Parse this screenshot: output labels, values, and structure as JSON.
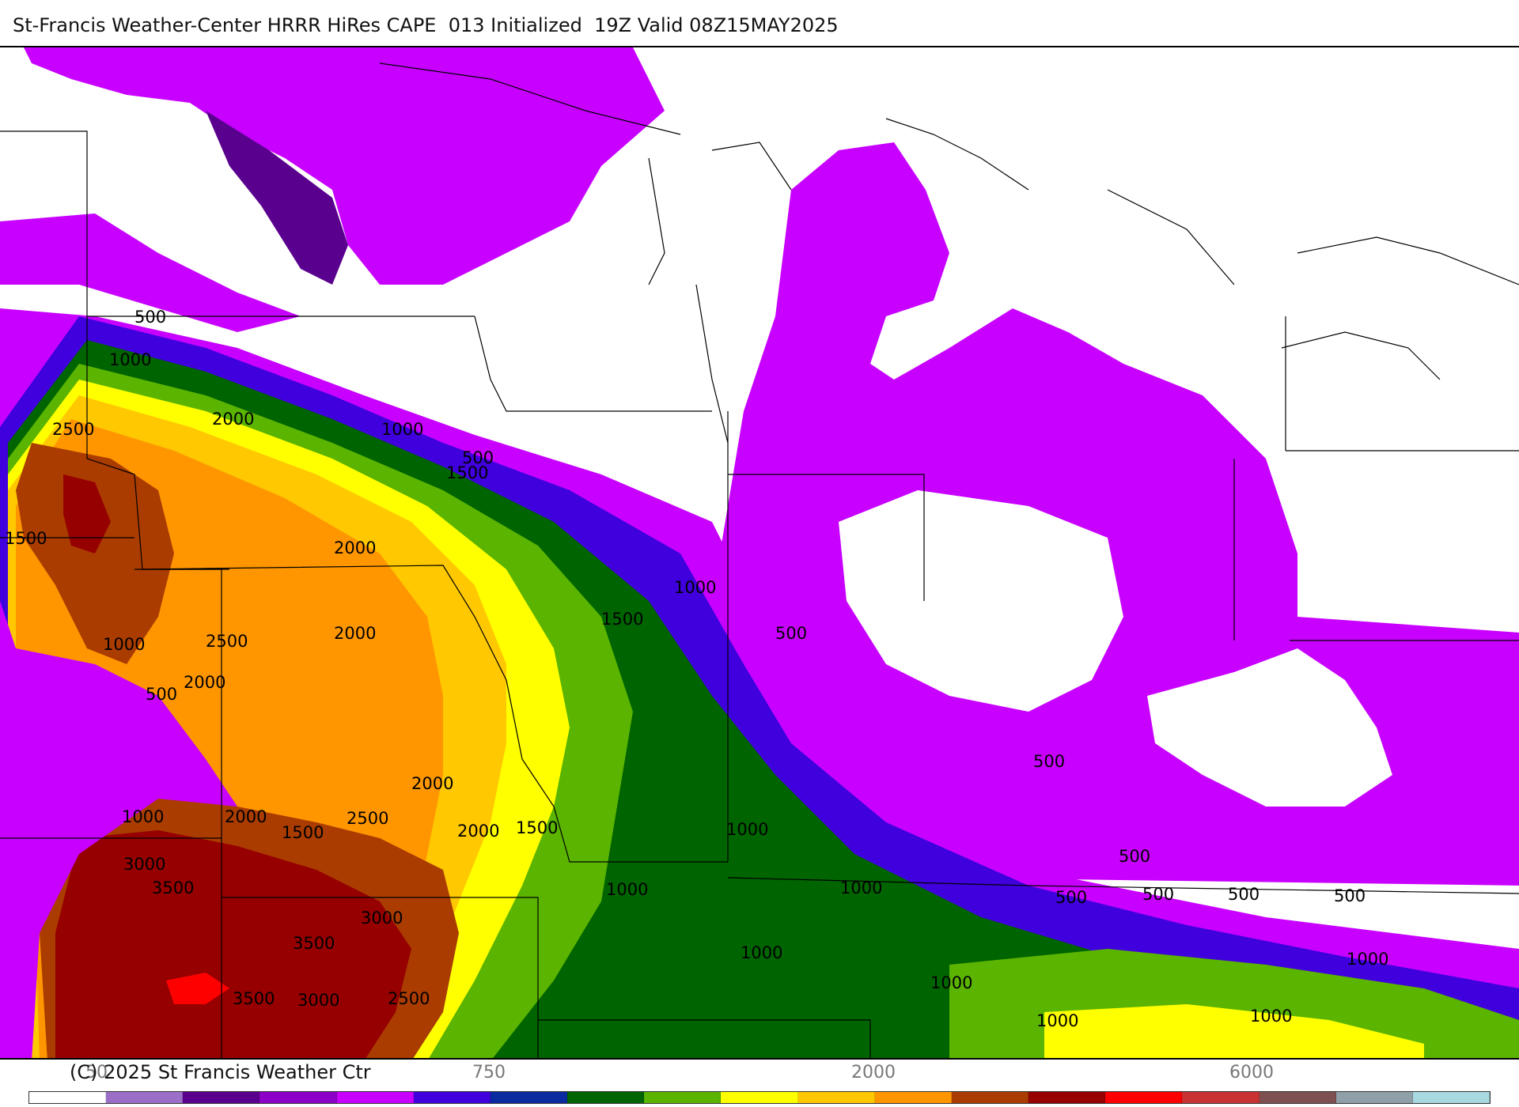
{
  "header": {
    "title": "St-Francis Weather-Center HRRR HiRes CAPE  013 Initialized  19Z Valid 08Z15MAY2025"
  },
  "footer": {
    "copyright": "(C) 2025 St Francis Weather Ctr"
  },
  "colorbar": {
    "ticks": [
      "50",
      "750",
      "2000",
      "6000"
    ],
    "colors": [
      "#ffffff",
      "#9b6fc7",
      "#5a008f",
      "#8c00c8",
      "#c800ff",
      "#3f00dd",
      "#0a2aa0",
      "#006400",
      "#5ab400",
      "#ffff00",
      "#ffc800",
      "#ff9600",
      "#aa3c00",
      "#960000",
      "#ff0000",
      "#c83232",
      "#7f5050",
      "#8fa0a8",
      "#a8d8e0"
    ]
  },
  "contour_labels": [
    "500",
    "1000",
    "1500",
    "2000",
    "2500",
    "3000",
    "3500"
  ],
  "legend_colors": {
    "cape_500": "#c800ff",
    "cape_1000": "#3f00dd",
    "cape_1500": "#5ab400",
    "cape_2000": "#ffc800",
    "cape_2500": "#ff9600",
    "cape_3000": "#aa3c00",
    "cape_3500": "#960000"
  }
}
